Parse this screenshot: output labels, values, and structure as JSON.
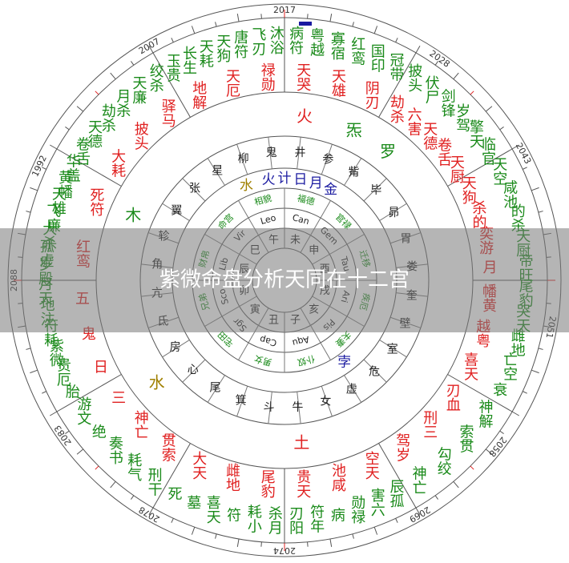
{
  "title": "紫微命盘分析天同在十二宫",
  "years": [
    "2017",
    "2028",
    "2043",
    "2051",
    "2058",
    "2069",
    "2074",
    "2078",
    "2083",
    "2088",
    "1992",
    "2007"
  ],
  "palaces": [
    {
      "green": [
        "病符",
        "粤越",
        "寡宿",
        "红鸾",
        "国印",
        "冠带"
      ],
      "red": [
        "天哭",
        "天雄",
        "阴刃"
      ]
    },
    {
      "green": [
        "披头",
        "伏尸",
        "剑锋",
        "岁驾",
        "擎天",
        "临官"
      ],
      "red": [
        "劫杀",
        "六害",
        "天德",
        "卷舌",
        "天厨"
      ]
    },
    {
      "green": [
        "天空",
        "咸池",
        "的杀",
        "天厨",
        "帝旺"
      ],
      "red": [
        "天狗",
        "杀的",
        "奕游",
        "月"
      ]
    },
    {
      "green": [
        "尾豹",
        "哭天",
        "雌地",
        "亡空",
        "衰"
      ],
      "red": [
        "幡黄",
        "越粤",
        "喜天"
      ]
    },
    {
      "green": [
        "神解",
        "索贯",
        "勾绞",
        "神亡"
      ],
      "red": [
        "刃血",
        "刑三",
        "驾岁"
      ]
    },
    {
      "green": [
        "辰孤",
        "害六",
        "勋禄",
        "病",
        "符年",
        "刃阳"
      ],
      "red": [
        "空天",
        "池咸",
        "贵天"
      ]
    },
    {
      "green": [
        "杀月",
        "耗小",
        "符",
        "喜天",
        "墓",
        "死"
      ],
      "red": [
        "尾豹",
        "雌地",
        "大天"
      ]
    },
    {
      "green": [
        "刑干",
        "耗气",
        "奏书",
        "绝",
        "游文"
      ],
      "red": [
        "贯索",
        "神亡",
        "三"
      ]
    },
    {
      "green": [
        "胎",
        "贵厄",
        "紫微",
        "符耗",
        "地注",
        "月天"
      ],
      "red": [
        "日",
        "鬼",
        "五"
      ]
    },
    {
      "green": [
        "岁殿",
        "孤虚",
        "大杀",
        "飞廉",
        "天雄",
        "黄幡",
        "华盖"
      ],
      "red": [
        "红鸾",
        "死符"
      ]
    },
    {
      "green": [
        "卷舌",
        "天德",
        "劫杀",
        "月杀",
        "天廉",
        "绞杀"
      ],
      "red": [
        "大耗",
        "披头",
        "驿马"
      ]
    },
    {
      "green": [
        "玉贵",
        "长生",
        "天耗",
        "天狗",
        "唐符",
        "飞刃",
        "沐浴"
      ],
      "red": [
        "地解",
        "天厄",
        "禄勋"
      ]
    }
  ],
  "outer_planets": [
    "火",
    "炁",
    "罗",
    "土",
    "水",
    "木"
  ],
  "mansions": [
    "井",
    "参",
    "觜",
    "毕",
    "昴",
    "胃",
    "娄",
    "奎",
    "壁",
    "室",
    "危",
    "虚",
    "女",
    "牛",
    "斗",
    "箕",
    "尾",
    "心",
    "房",
    "氐",
    "亢",
    "角",
    "轸",
    "翼",
    "张",
    "星",
    "柳",
    "鬼"
  ],
  "inner_planets": [
    "水",
    "火",
    "计",
    "日",
    "月",
    "金",
    "孛"
  ],
  "houses": [
    "福德",
    "官禄",
    "迁移",
    "疾厄",
    "夫妻",
    "仆奴",
    "男女",
    "宅田",
    "兄弟",
    "财帛",
    "命宫",
    "相貌"
  ],
  "zodiac": [
    "Can",
    "Gem",
    "Tau",
    "Ari",
    "Pis",
    "Aqu",
    "Cap",
    "Sgr",
    "Sco",
    "Lib",
    "Vir",
    "Leo"
  ],
  "branches": [
    "未",
    "申",
    "酉",
    "戌",
    "亥",
    "子",
    "丑",
    "寅",
    "卯",
    "辰",
    "巳",
    "午"
  ]
}
